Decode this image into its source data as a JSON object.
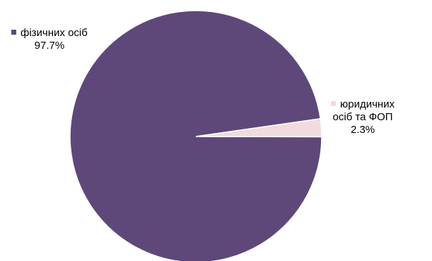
{
  "chart_data": {
    "type": "pie",
    "title": "",
    "slices": [
      {
        "label": "фізичних осіб",
        "label_lines": [
          "фізичних осіб"
        ],
        "value": 97.7,
        "value_label": "97.7%",
        "color": "#5e4879"
      },
      {
        "label": "юридичних осіб та ФОП",
        "label_lines": [
          "юридичних",
          "осіб та ФОП"
        ],
        "value": 2.3,
        "value_label": "2.3%",
        "color": "#f1dbde"
      }
    ],
    "legend": "inline-labels"
  }
}
